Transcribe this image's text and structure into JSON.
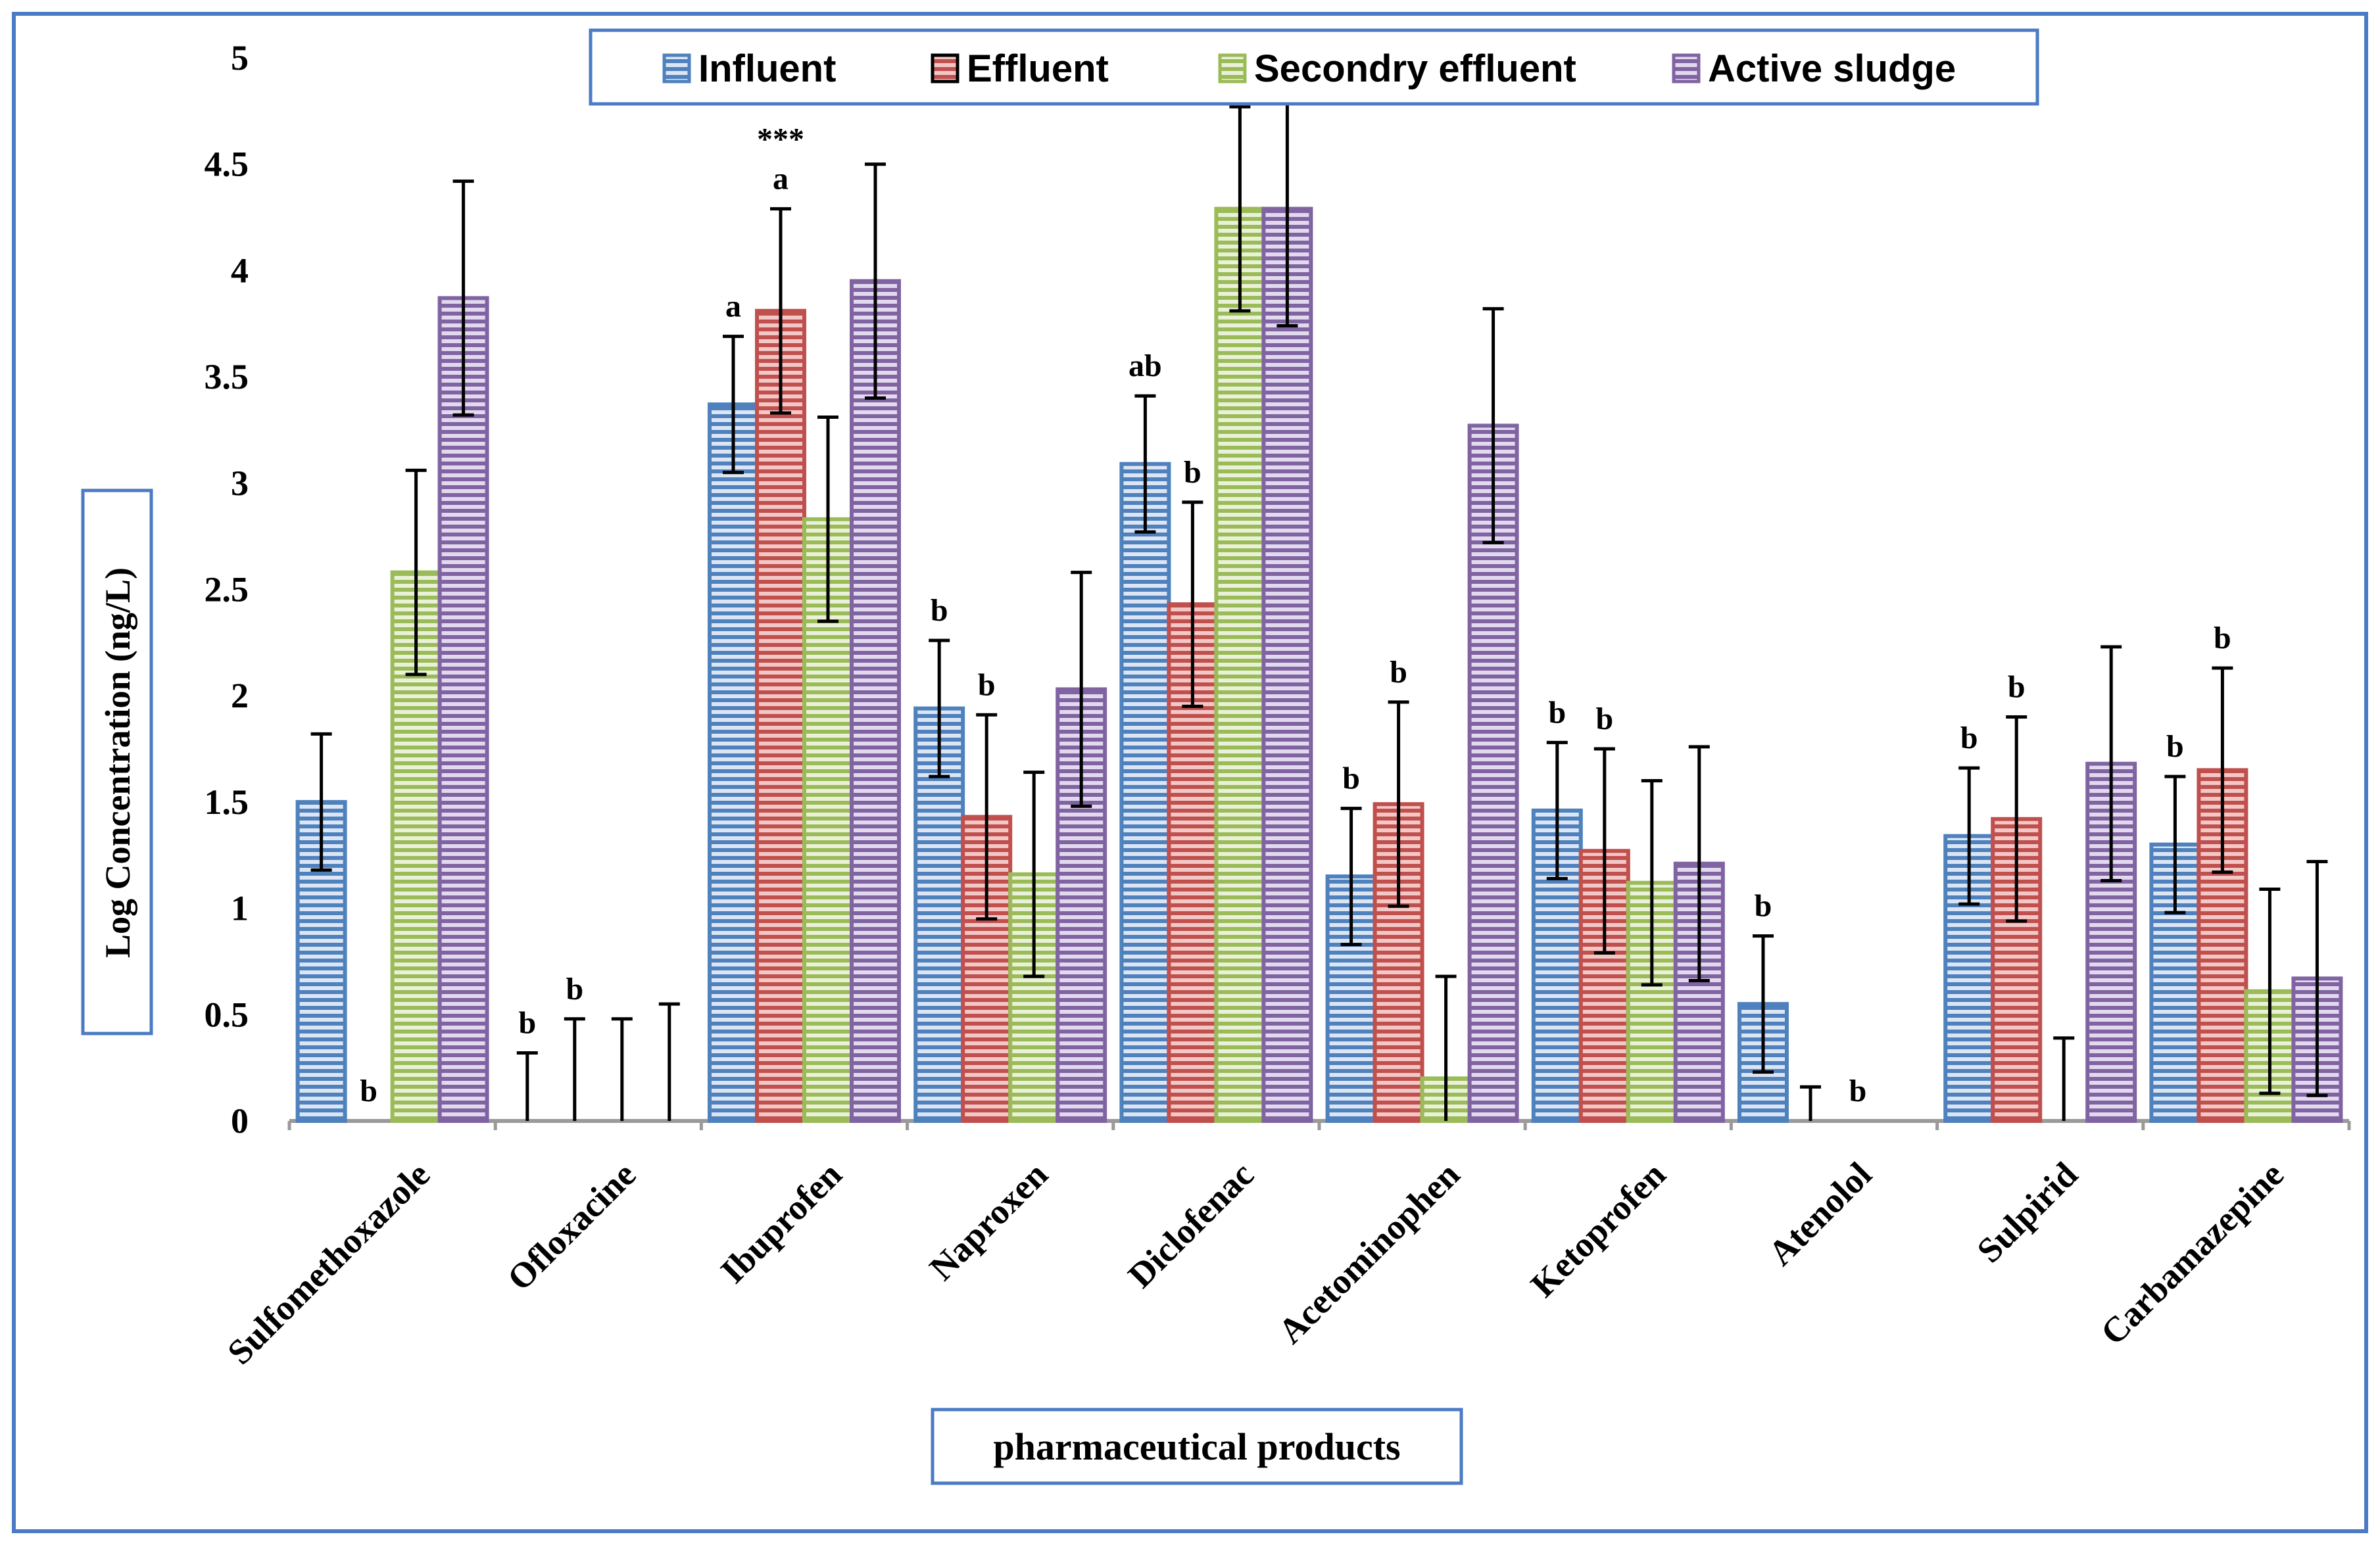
{
  "chart_data": {
    "type": "bar",
    "title": "",
    "xlabel": "pharmaceutical products",
    "ylabel": "Log Concentration (ng/L)",
    "ylim": [
      0,
      5
    ],
    "yticks": [
      "0",
      "0.5",
      "1",
      "1.5",
      "2",
      "2.5",
      "3",
      "3.5",
      "4",
      "4.5",
      "5"
    ],
    "grid": false,
    "legend_position": "top",
    "categories": [
      "Sulfomethoxazole",
      "Ofloxacine",
      "Ibuprofen",
      "Naproxen",
      "Diclofenac",
      "Acetominophen",
      "Ketoprofen",
      "Atenolol",
      "Sulpirid",
      "Carbamazepine"
    ],
    "series": [
      {
        "name": "Influent",
        "color": "#4f81bd",
        "stripe": "#dbe5f4",
        "values": [
          1.5,
          0,
          3.37,
          1.94,
          3.09,
          1.15,
          1.46,
          0.55,
          1.34,
          1.3
        ],
        "errors": [
          0.32,
          0.32,
          0.32,
          0.32,
          0.32,
          0.32,
          0.32,
          0.32,
          0.32,
          0.32
        ]
      },
      {
        "name": "Effluent",
        "color": "#c0504d",
        "stripe": "#f2c7c6",
        "values": [
          0,
          0,
          3.81,
          1.43,
          2.43,
          1.49,
          1.27,
          0,
          1.42,
          1.65
        ],
        "errors": [
          0,
          0.48,
          0.48,
          0.48,
          0.48,
          0.48,
          0.48,
          0.16,
          0.48,
          0.48
        ]
      },
      {
        "name": "Secondry effluent",
        "color": "#9bbb59",
        "stripe": "#eaf1d9",
        "values": [
          2.58,
          0,
          2.83,
          1.16,
          4.29,
          0.2,
          1.12,
          0,
          0,
          0.61
        ],
        "errors": [
          0.48,
          0.48,
          0.48,
          0.48,
          0.48,
          0.48,
          0.48,
          0,
          0.39,
          0.48
        ]
      },
      {
        "name": "Active sludge",
        "color": "#8064a2",
        "stripe": "#e2d9ef",
        "values": [
          3.87,
          0,
          3.95,
          2.03,
          4.29,
          3.27,
          1.21,
          0,
          1.68,
          0.67
        ],
        "errors": [
          0.55,
          0.55,
          0.55,
          0.55,
          0.55,
          0.55,
          0.55,
          0,
          0.55,
          0.55
        ]
      }
    ],
    "annotations": [
      {
        "text": "b",
        "category": 0,
        "series": 1
      },
      {
        "text": "b",
        "category": 1,
        "series": 0
      },
      {
        "text": "b",
        "category": 1,
        "series": 1
      },
      {
        "text": "a",
        "category": 2,
        "series": 0
      },
      {
        "text": "a",
        "category": 2,
        "series": 1
      },
      {
        "text": "***",
        "category": 2,
        "series": 1
      },
      {
        "text": "b",
        "category": 3,
        "series": 0
      },
      {
        "text": "b",
        "category": 3,
        "series": 1
      },
      {
        "text": "ab",
        "category": 4,
        "series": 0
      },
      {
        "text": "b",
        "category": 4,
        "series": 1
      },
      {
        "text": "b",
        "category": 5,
        "series": 0
      },
      {
        "text": "b",
        "category": 5,
        "series": 1
      },
      {
        "text": "b",
        "category": 6,
        "series": 0
      },
      {
        "text": "b",
        "category": 6,
        "series": 1
      },
      {
        "text": "b",
        "category": 7,
        "series": 0
      },
      {
        "text": "b",
        "category": 7,
        "series": 2
      },
      {
        "text": "b",
        "category": 8,
        "series": 0
      },
      {
        "text": "b",
        "category": 8,
        "series": 1
      },
      {
        "text": "b",
        "category": 9,
        "series": 0
      },
      {
        "text": "b",
        "category": 9,
        "series": 1
      }
    ]
  }
}
